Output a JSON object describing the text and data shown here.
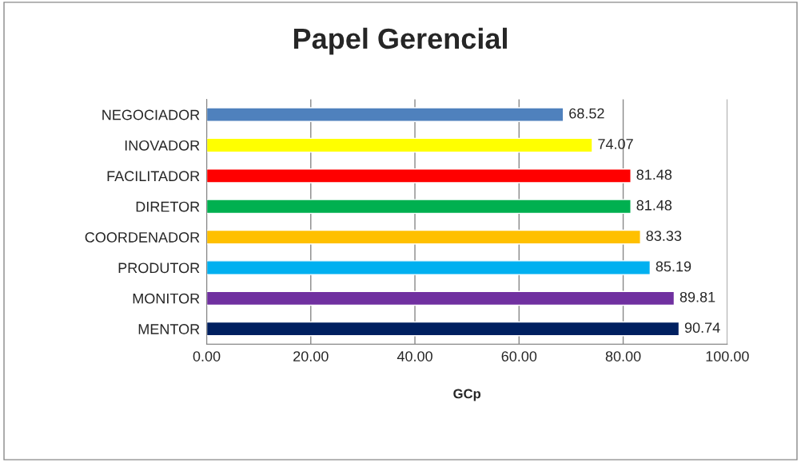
{
  "chart_data": {
    "type": "bar",
    "orientation": "horizontal",
    "title": "Papel Gerencial",
    "xlabel": "GCp",
    "categories": [
      "NEGOCIADOR",
      "INOVADOR",
      "FACILITADOR",
      "DIRETOR",
      "COORDENADOR",
      "PRODUTOR",
      "MONITOR",
      "MENTOR"
    ],
    "values": [
      68.52,
      74.07,
      81.48,
      81.48,
      83.33,
      85.19,
      89.81,
      90.74
    ],
    "colors": [
      "#4f81bd",
      "#ffff00",
      "#ff0000",
      "#00b050",
      "#ffc000",
      "#00b0f0",
      "#7030a0",
      "#002060"
    ],
    "xlim": [
      0,
      100
    ],
    "xticks": [
      {
        "value": 0,
        "label": "0.00"
      },
      {
        "value": 20,
        "label": "20.00"
      },
      {
        "value": 40,
        "label": "40.00"
      },
      {
        "value": 60,
        "label": "60.00"
      },
      {
        "value": 80,
        "label": "80.00"
      },
      {
        "value": 100,
        "label": "100.00"
      }
    ],
    "grid": "x",
    "data_labels": true,
    "legend": false
  }
}
